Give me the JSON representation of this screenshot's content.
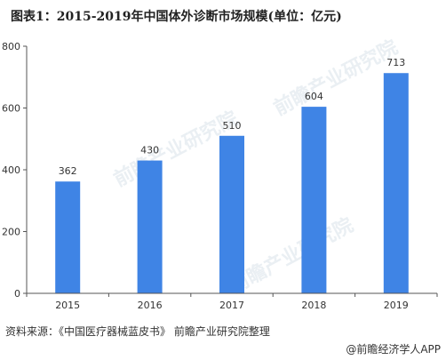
{
  "title": "图表1：2015-2019年中国体外诊断市场规模(单位：亿元)",
  "source": "资料来源：《中国医疗器械蓝皮书》 前瞻产业研究院整理",
  "brand": "@前瞻经济学人APP",
  "watermark": "前瞻产业研究院",
  "colors": {
    "bar": "#3f84e5",
    "axis": "#555555",
    "text": "#333333"
  },
  "chart_data": {
    "type": "bar",
    "categories": [
      "2015",
      "2016",
      "2017",
      "2018",
      "2019"
    ],
    "values": [
      362,
      430,
      510,
      604,
      713
    ],
    "ylim": [
      0,
      800
    ],
    "yticks": [
      0,
      200,
      400,
      600,
      800
    ],
    "xlabel": "",
    "ylabel": "",
    "grid": false,
    "data_labels": true
  }
}
